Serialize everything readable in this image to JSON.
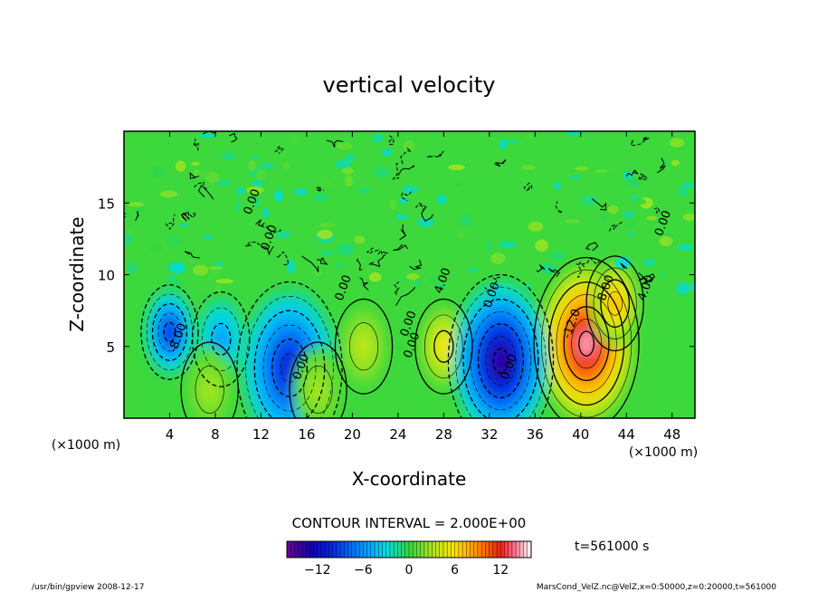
{
  "chart_data": {
    "type": "heatmap",
    "title": "vertical velocity",
    "xlabel": "X-coordinate",
    "ylabel": "Z-coordinate",
    "x_unit": "(×1000 m)",
    "y_unit": "(×1000 m)",
    "xlim": [
      0,
      50
    ],
    "ylim": [
      0,
      20
    ],
    "x_ticks": [
      "4",
      "8",
      "12",
      "16",
      "20",
      "24",
      "28",
      "32",
      "36",
      "40",
      "44",
      "48"
    ],
    "y_ticks": [
      "5",
      "10",
      "15"
    ],
    "x_tick_values": [
      4,
      8,
      12,
      16,
      20,
      24,
      28,
      32,
      36,
      40,
      44,
      48
    ],
    "y_tick_values": [
      5,
      10,
      15
    ],
    "contour_interval_text": "CONTOUR INTERVAL = 2.000E+00",
    "time_label": "t=561000 s",
    "colorbar": {
      "range": [
        -16,
        16
      ],
      "ticks": [
        "−12",
        "−6",
        "0",
        "6",
        "12"
      ],
      "tick_values": [
        -12,
        -6,
        0,
        6,
        12
      ]
    },
    "contour_labels": [
      {
        "text": "0.00",
        "x": 11.5,
        "z": 15.0
      },
      {
        "text": "0.00",
        "x": 13.0,
        "z": 12.5
      },
      {
        "text": "-8.00",
        "x": 5.0,
        "z": 5.5
      },
      {
        "text": "0.00",
        "x": 19.5,
        "z": 9.0
      },
      {
        "text": "0.00",
        "x": 25.2,
        "z": 6.5
      },
      {
        "text": "0.00",
        "x": 25.5,
        "z": 5.0
      },
      {
        "text": "4.00",
        "x": 28.2,
        "z": 9.5
      },
      {
        "text": "0.00",
        "x": 32.5,
        "z": 8.5
      },
      {
        "text": "0.00",
        "x": 34.0,
        "z": 3.5
      },
      {
        "text": "0.00",
        "x": 15.8,
        "z": 3.5
      },
      {
        "text": "8.00",
        "x": 42.5,
        "z": 9.0
      },
      {
        "text": "-12.0",
        "x": 39.5,
        "z": 6.5
      },
      {
        "text": "4.00",
        "x": 46.0,
        "z": 9.0
      },
      {
        "text": "0.00",
        "x": 47.5,
        "z": 13.5
      }
    ],
    "extrema": [
      {
        "label": "max updraft",
        "x": 40.5,
        "z": 5.2,
        "w": 14.5
      },
      {
        "label": "updraft",
        "x": 43.0,
        "z": 8.0,
        "w": 8
      },
      {
        "label": "updraft",
        "x": 28.0,
        "z": 5.0,
        "w": 6
      },
      {
        "label": "downdraft",
        "x": 33.0,
        "z": 4.0,
        "w": -14
      },
      {
        "label": "downdraft",
        "x": 14.5,
        "z": 3.5,
        "w": -11
      },
      {
        "label": "downdraft",
        "x": 4.0,
        "z": 6.0,
        "w": -10
      },
      {
        "label": "downdraft",
        "x": 8.5,
        "z": 5.5,
        "w": -6
      },
      {
        "label": "updraft",
        "x": 21.0,
        "z": 5.0,
        "w": 4
      },
      {
        "label": "updraft",
        "x": 7.5,
        "z": 2.0,
        "w": 3
      },
      {
        "label": "updraft",
        "x": 17.0,
        "z": 2.0,
        "w": 3
      }
    ]
  },
  "footer": {
    "left": "/usr/bin/gpview   2008-12-17",
    "right": "MarsCond_VelZ.nc@VelZ,x=0:50000,z=0:20000,t=561000"
  }
}
